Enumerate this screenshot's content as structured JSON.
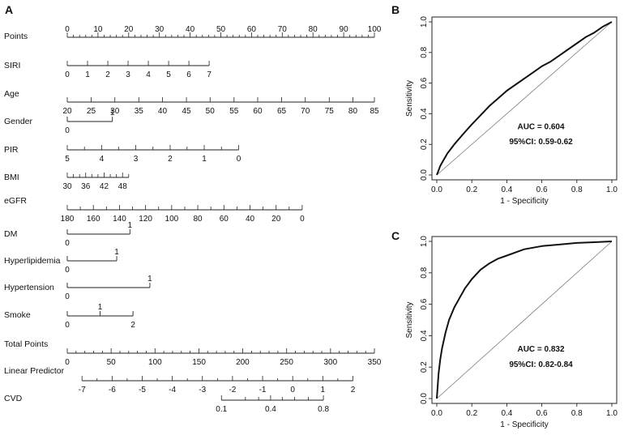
{
  "panels": {
    "a": "A",
    "b": "B",
    "c": "C"
  },
  "chart_data": [
    {
      "type": "nomogram",
      "panel": "A",
      "rows": [
        {
          "label": "Points",
          "scale_min": 0,
          "scale_max": 100,
          "ticks": [
            {
              "v": 0,
              "t": "0"
            },
            {
              "v": 10,
              "t": "10"
            },
            {
              "v": 20,
              "t": "20"
            },
            {
              "v": 30,
              "t": "30"
            },
            {
              "v": 40,
              "t": "40"
            },
            {
              "v": 50,
              "t": "50"
            },
            {
              "v": 60,
              "t": "60"
            },
            {
              "v": 70,
              "t": "70"
            },
            {
              "v": 80,
              "t": "80"
            },
            {
              "v": 90,
              "t": "90"
            },
            {
              "v": 100,
              "t": "100"
            }
          ],
          "minor_step": 2,
          "label_side": "above"
        },
        {
          "label": "SIRI",
          "ticks": [
            {
              "v": 0,
              "t": "0"
            },
            {
              "v": 6.6,
              "t": "1"
            },
            {
              "v": 13.2,
              "t": "2"
            },
            {
              "v": 19.8,
              "t": "3"
            },
            {
              "v": 26.4,
              "t": "4"
            },
            {
              "v": 33,
              "t": "5"
            },
            {
              "v": 39.6,
              "t": "6"
            },
            {
              "v": 46.2,
              "t": "7"
            }
          ],
          "label_side": "below"
        },
        {
          "label": "Age",
          "ticks": [
            {
              "v": 0,
              "t": "20"
            },
            {
              "v": 7.8,
              "t": "25"
            },
            {
              "v": 15.5,
              "t": "30"
            },
            {
              "v": 23.3,
              "t": "35"
            },
            {
              "v": 31,
              "t": "40"
            },
            {
              "v": 38.8,
              "t": "45"
            },
            {
              "v": 46.5,
              "t": "50"
            },
            {
              "v": 54.3,
              "t": "55"
            },
            {
              "v": 62,
              "t": "60"
            },
            {
              "v": 69.8,
              "t": "65"
            },
            {
              "v": 77.5,
              "t": "70"
            },
            {
              "v": 85.3,
              "t": "75"
            },
            {
              "v": 93,
              "t": "80"
            },
            {
              "v": 100,
              "t": "85"
            }
          ],
          "label_side": "below"
        },
        {
          "label": "Gender",
          "type": "categorical",
          "ticks": [
            {
              "v": 0,
              "t": "0",
              "pos": "below"
            },
            {
              "v": 14.7,
              "t": "1",
              "pos": "above"
            }
          ]
        },
        {
          "label": "PIR",
          "ticks": [
            {
              "v": 0,
              "t": "5"
            },
            {
              "v": 5.6,
              "t": ""
            },
            {
              "v": 11.2,
              "t": "4"
            },
            {
              "v": 16.7,
              "t": ""
            },
            {
              "v": 22.3,
              "t": "3"
            },
            {
              "v": 27.9,
              "t": ""
            },
            {
              "v": 33.5,
              "t": "2"
            },
            {
              "v": 39,
              "t": ""
            },
            {
              "v": 44.6,
              "t": "1"
            },
            {
              "v": 50.2,
              "t": ""
            },
            {
              "v": 55.8,
              "t": "0"
            }
          ],
          "label_side": "below"
        },
        {
          "label": "BMI",
          "ticks": [
            {
              "v": 0,
              "t": "30"
            },
            {
              "v": 2,
              "t": ""
            },
            {
              "v": 4,
              "t": ""
            },
            {
              "v": 6,
              "t": "36"
            },
            {
              "v": 8,
              "t": ""
            },
            {
              "v": 10,
              "t": ""
            },
            {
              "v": 12,
              "t": "42"
            },
            {
              "v": 14,
              "t": ""
            },
            {
              "v": 16,
              "t": ""
            },
            {
              "v": 18,
              "t": "48"
            },
            {
              "v": 20,
              "t": ""
            }
          ],
          "label_side": "below"
        },
        {
          "label": "eGFR",
          "ticks": [
            {
              "v": 0,
              "t": "180"
            },
            {
              "v": 4.25,
              "t": ""
            },
            {
              "v": 8.5,
              "t": "160"
            },
            {
              "v": 12.75,
              "t": ""
            },
            {
              "v": 17,
              "t": "140"
            },
            {
              "v": 21.25,
              "t": ""
            },
            {
              "v": 25.5,
              "t": "120"
            },
            {
              "v": 29.75,
              "t": ""
            },
            {
              "v": 34,
              "t": "100"
            },
            {
              "v": 38.25,
              "t": ""
            },
            {
              "v": 42.5,
              "t": "80"
            },
            {
              "v": 46.75,
              "t": ""
            },
            {
              "v": 51,
              "t": "60"
            },
            {
              "v": 55.25,
              "t": ""
            },
            {
              "v": 59.5,
              "t": "40"
            },
            {
              "v": 63.75,
              "t": ""
            },
            {
              "v": 68,
              "t": "20"
            },
            {
              "v": 72.25,
              "t": ""
            },
            {
              "v": 76.5,
              "t": "0"
            }
          ],
          "label_side": "below"
        },
        {
          "label": "DM",
          "type": "categorical",
          "ticks": [
            {
              "v": 0,
              "t": "0",
              "pos": "below"
            },
            {
              "v": 20.4,
              "t": "1",
              "pos": "above"
            }
          ]
        },
        {
          "label": "Hyperlipidemia",
          "type": "categorical",
          "ticks": [
            {
              "v": 0,
              "t": "0",
              "pos": "below"
            },
            {
              "v": 16.1,
              "t": "1",
              "pos": "above"
            }
          ]
        },
        {
          "label": "Hypertension",
          "type": "categorical",
          "ticks": [
            {
              "v": 0,
              "t": "0",
              "pos": "below"
            },
            {
              "v": 26.9,
              "t": "1",
              "pos": "above"
            }
          ]
        },
        {
          "label": "Smoke",
          "type": "categorical",
          "ticks": [
            {
              "v": 0,
              "t": "0",
              "pos": "below"
            },
            {
              "v": 10.7,
              "t": "1",
              "pos": "above"
            },
            {
              "v": 21.4,
              "t": "2",
              "pos": "below"
            }
          ]
        },
        {
          "label": "Total Points",
          "scale_min": 0,
          "scale_max": 350,
          "ticks": [
            {
              "v": 0,
              "t": "0"
            },
            {
              "v": 14.3,
              "t": "50"
            },
            {
              "v": 28.6,
              "t": "100"
            },
            {
              "v": 42.9,
              "t": "150"
            },
            {
              "v": 57.1,
              "t": "200"
            },
            {
              "v": 71.4,
              "t": "250"
            },
            {
              "v": 85.7,
              "t": "300"
            },
            {
              "v": 100,
              "t": "350"
            }
          ],
          "minor_step_total": 10,
          "label_side": "below"
        },
        {
          "label": "Linear Predictor",
          "ticks": [
            {
              "v": 4.8,
              "t": "-7"
            },
            {
              "v": 14.6,
              "t": "-6"
            },
            {
              "v": 24.4,
              "t": "-5"
            },
            {
              "v": 34.2,
              "t": "-4"
            },
            {
              "v": 44,
              "t": "-3"
            },
            {
              "v": 53.8,
              "t": "-2"
            },
            {
              "v": 63.6,
              "t": "-1"
            },
            {
              "v": 73.4,
              "t": "0"
            },
            {
              "v": 83.2,
              "t": "1"
            },
            {
              "v": 93,
              "t": "2"
            }
          ],
          "minor_half": true,
          "label_side": "below"
        },
        {
          "label": "CVD",
          "ticks": [
            {
              "v": 50.2,
              "t": "0.1"
            },
            {
              "v": 58,
              "t": ""
            },
            {
              "v": 62.3,
              "t": ""
            },
            {
              "v": 66.2,
              "t": "0.4"
            },
            {
              "v": 70,
              "t": ""
            },
            {
              "v": 74,
              "t": ""
            },
            {
              "v": 78.5,
              "t": ""
            },
            {
              "v": 83.4,
              "t": "0.8"
            }
          ],
          "label_side": "below"
        }
      ]
    },
    {
      "type": "line",
      "panel": "B",
      "xlabel": "1 - Specificity",
      "ylabel": "Sensitivity",
      "xlim": [
        0,
        1
      ],
      "ylim": [
        0,
        1
      ],
      "xticks": [
        "0.0",
        "0.2",
        "0.4",
        "0.6",
        "0.8",
        "1.0"
      ],
      "yticks": [
        "0.0",
        "0.2",
        "0.4",
        "0.6",
        "0.8",
        "1.0"
      ],
      "auc_text": "AUC = 0.604",
      "ci_text": "95%CI: 0.59-0.62",
      "series": [
        {
          "name": "ROC",
          "x": [
            0,
            0.01,
            0.02,
            0.04,
            0.06,
            0.08,
            0.1,
            0.13,
            0.16,
            0.2,
            0.25,
            0.3,
            0.35,
            0.4,
            0.45,
            0.5,
            0.55,
            0.6,
            0.65,
            0.7,
            0.75,
            0.8,
            0.85,
            0.9,
            0.95,
            1.0
          ],
          "y": [
            0,
            0.03,
            0.06,
            0.1,
            0.14,
            0.17,
            0.2,
            0.24,
            0.28,
            0.33,
            0.39,
            0.45,
            0.5,
            0.55,
            0.59,
            0.63,
            0.67,
            0.71,
            0.74,
            0.78,
            0.82,
            0.86,
            0.9,
            0.93,
            0.97,
            1.0
          ]
        },
        {
          "name": "reference",
          "x": [
            0,
            1
          ],
          "y": [
            0,
            1
          ]
        }
      ]
    },
    {
      "type": "line",
      "panel": "C",
      "xlabel": "1 - Specificity",
      "ylabel": "Sensitivity",
      "xlim": [
        0,
        1
      ],
      "ylim": [
        0,
        1
      ],
      "xticks": [
        "0.0",
        "0.2",
        "0.4",
        "0.6",
        "0.8",
        "1.0"
      ],
      "yticks": [
        "0.0",
        "0.2",
        "0.4",
        "0.6",
        "0.8",
        "1.0"
      ],
      "auc_text": "AUC = 0.832",
      "ci_text": "95%CI: 0.82-0.84",
      "series": [
        {
          "name": "ROC",
          "x": [
            0,
            0.005,
            0.01,
            0.02,
            0.03,
            0.05,
            0.07,
            0.1,
            0.13,
            0.16,
            0.2,
            0.25,
            0.3,
            0.35,
            0.4,
            0.45,
            0.5,
            0.6,
            0.7,
            0.8,
            0.9,
            1.0
          ],
          "y": [
            0,
            0.08,
            0.16,
            0.25,
            0.32,
            0.42,
            0.5,
            0.58,
            0.64,
            0.7,
            0.76,
            0.82,
            0.86,
            0.89,
            0.91,
            0.93,
            0.95,
            0.97,
            0.98,
            0.99,
            0.995,
            1.0
          ]
        },
        {
          "name": "reference",
          "x": [
            0,
            1
          ],
          "y": [
            0,
            1
          ]
        }
      ]
    }
  ]
}
